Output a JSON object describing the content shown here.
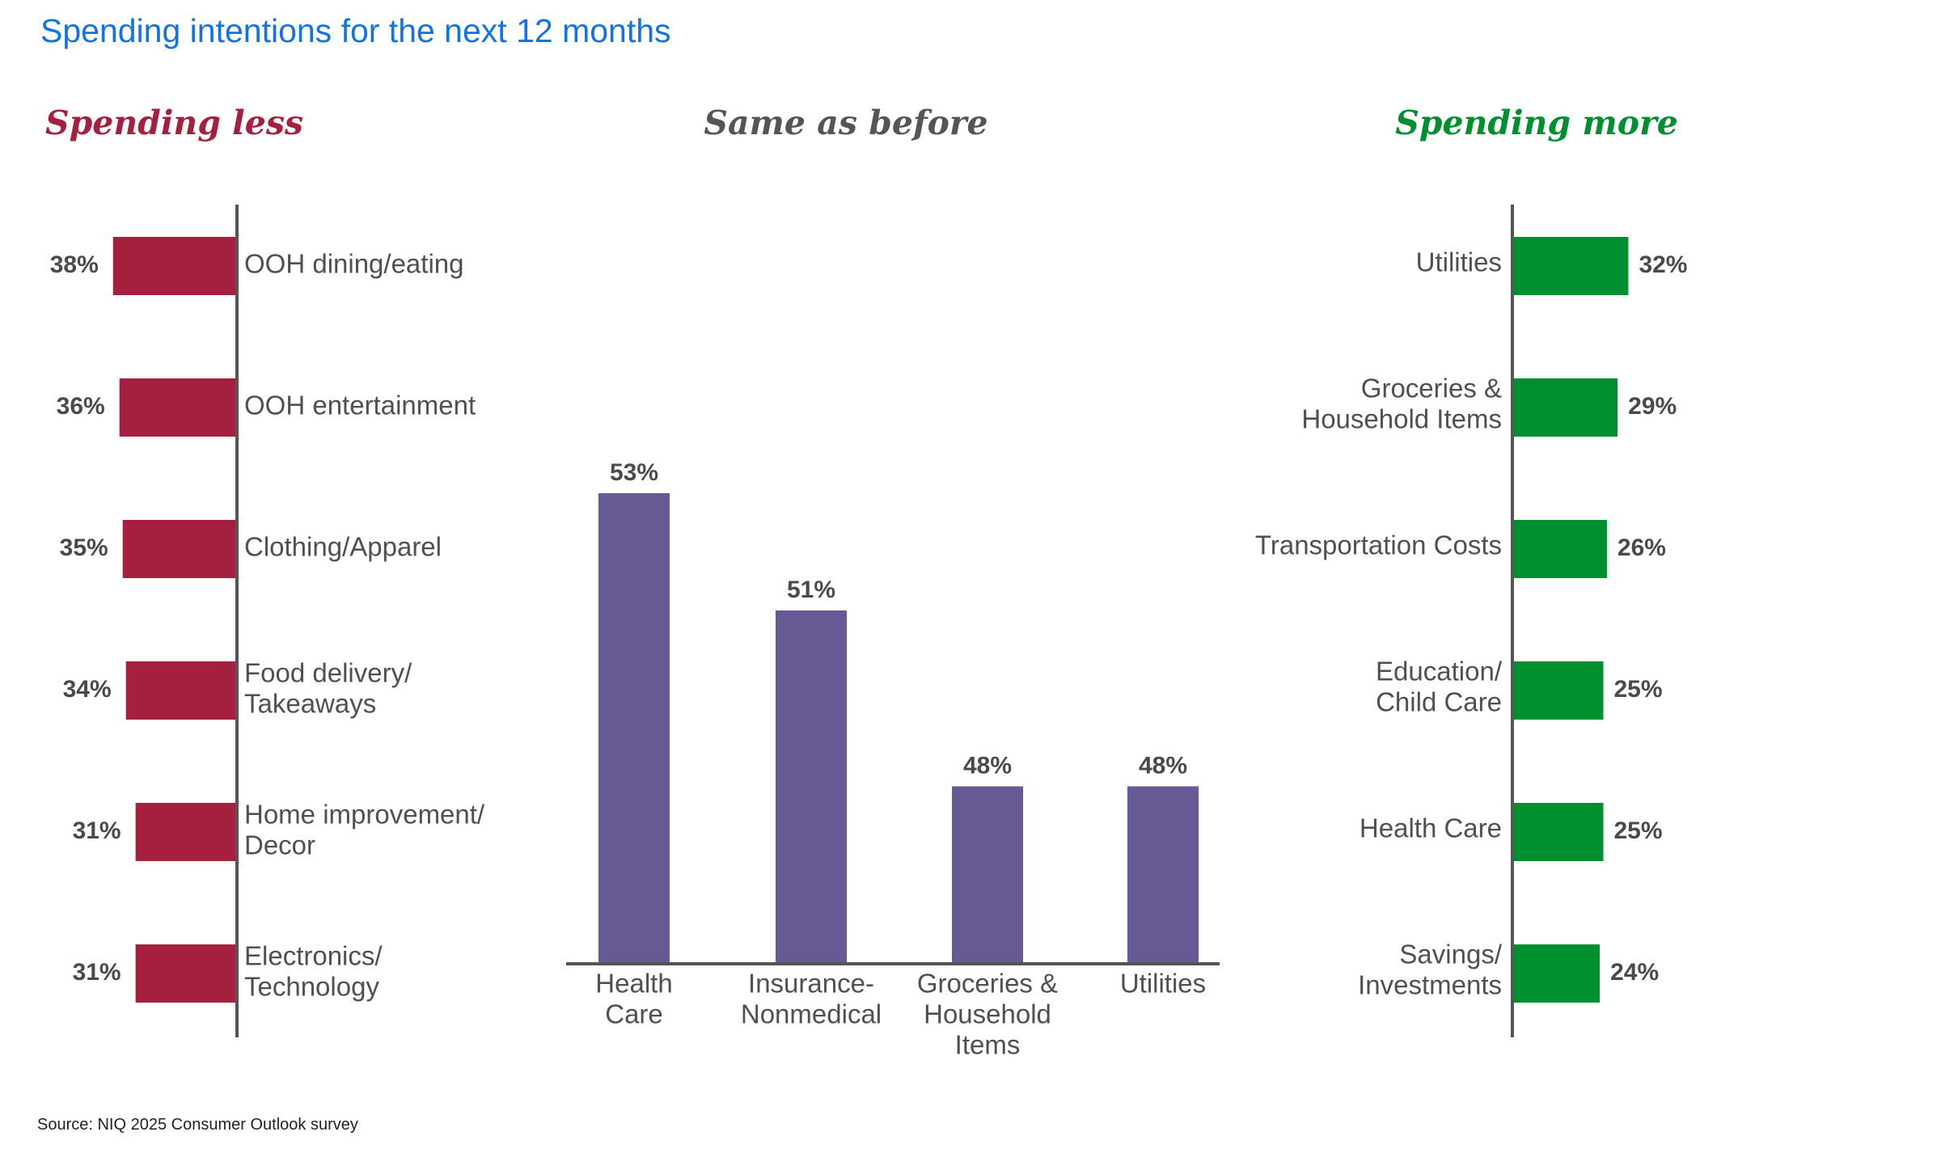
{
  "title": "Spending intentions for the next 12 months",
  "source": "Source: NIQ 2025 Consumer Outlook survey",
  "colors": {
    "title": "#1273e6",
    "less": "#a5203e",
    "same": "#675993",
    "more": "#008f2e",
    "axis": "#555555",
    "text": "#505050"
  },
  "chart_data": [
    {
      "type": "bar",
      "orientation": "horizontal",
      "title": "Spending less",
      "categories": [
        [
          "OOH dining/eating"
        ],
        [
          "OOH entertainment"
        ],
        [
          "Clothing/Apparel"
        ],
        [
          "Food delivery/",
          "Takeaways"
        ],
        [
          "Home improvement/",
          "Decor"
        ],
        [
          "Electronics/",
          "Technology"
        ]
      ],
      "values": [
        38,
        36,
        35,
        34,
        31,
        31
      ],
      "value_labels": [
        "38%",
        "36%",
        "35%",
        "34%",
        "31%",
        "31%"
      ],
      "unit": "%"
    },
    {
      "type": "bar",
      "orientation": "vertical",
      "title": "Same as before",
      "categories": [
        [
          "Health",
          "Care"
        ],
        [
          "Insurance-",
          "Nonmedical"
        ],
        [
          "Groceries &",
          "Household",
          "Items"
        ],
        [
          "Utilities"
        ]
      ],
      "values": [
        53,
        51,
        48,
        48
      ],
      "value_labels": [
        "53%",
        "51%",
        "48%",
        "48%"
      ],
      "unit": "%"
    },
    {
      "type": "bar",
      "orientation": "horizontal",
      "title": "Spending more",
      "categories": [
        [
          "Utilities"
        ],
        [
          "Groceries &",
          "Household Items"
        ],
        [
          "Transportation Costs"
        ],
        [
          "Education/",
          "Child Care"
        ],
        [
          "Health Care"
        ],
        [
          "Savings/",
          "Investments"
        ]
      ],
      "values": [
        32,
        29,
        26,
        25,
        25,
        24
      ],
      "value_labels": [
        "32%",
        "29%",
        "26%",
        "25%",
        "25%",
        "24%"
      ],
      "unit": "%"
    }
  ]
}
